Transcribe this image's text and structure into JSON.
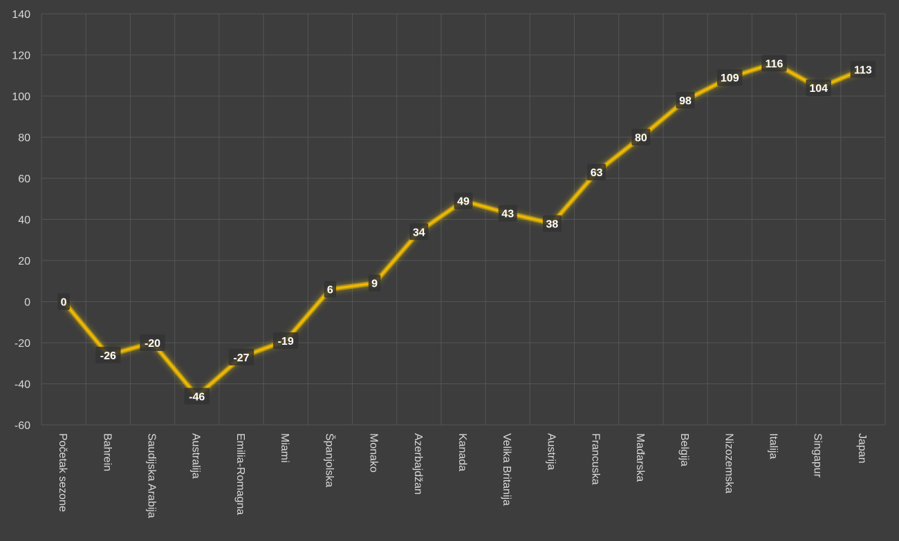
{
  "chart_data": {
    "type": "line",
    "categories": [
      "Početak sezone",
      "Bahrein",
      "Saudijska Arabija",
      "Australija",
      "Emilia-Romagna",
      "Miami",
      "Španjolska",
      "Monako",
      "Azerbajdžan",
      "Kanada",
      "Velika Britanija",
      "Austrija",
      "Francuska",
      "Mađarska",
      "Belgija",
      "Nizozemska",
      "Italija",
      "Singapur",
      "Japan"
    ],
    "series": [
      {
        "values": [
          0,
          -26,
          -20,
          -46,
          -27,
          -19,
          6,
          9,
          34,
          49,
          43,
          38,
          63,
          80,
          98,
          109,
          116,
          104,
          113
        ]
      }
    ],
    "ylim": [
      -60,
      140
    ],
    "yticks": [
      -60,
      -40,
      -20,
      0,
      20,
      40,
      60,
      80,
      100,
      120,
      140
    ],
    "title": "",
    "xlabel": "",
    "ylabel": "",
    "grid": true,
    "data_labels": true,
    "colors": {
      "background": "#3d3d3d",
      "line": "#f5b800",
      "glow": "#ffd400",
      "grid": "#555555",
      "text": "#d9d9d9",
      "label_text": "#ffffff",
      "label_bg": "#333333"
    }
  }
}
